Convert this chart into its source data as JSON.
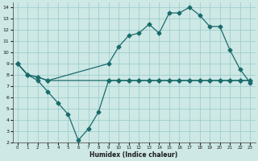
{
  "xlabel": "Humidex (Indice chaleur)",
  "bg_color": "#cde8e5",
  "grid_color": "#9ecece",
  "line_color": "#1a6b6b",
  "xlim": [
    -0.5,
    23.5
  ],
  "ylim": [
    2,
    14.4
  ],
  "xticks": [
    0,
    1,
    2,
    3,
    4,
    5,
    6,
    7,
    8,
    9,
    10,
    11,
    12,
    13,
    14,
    15,
    16,
    17,
    18,
    19,
    20,
    21,
    22,
    23
  ],
  "yticks": [
    2,
    3,
    4,
    5,
    6,
    7,
    8,
    9,
    10,
    11,
    12,
    13,
    14
  ],
  "line1_x": [
    0,
    1,
    2,
    3,
    4,
    5,
    6,
    7,
    8,
    9,
    10,
    11,
    12,
    13,
    14,
    15,
    16,
    17,
    18,
    19,
    20,
    21,
    22,
    23
  ],
  "line1_y": [
    9,
    8,
    7.5,
    6.5,
    5.5,
    4.5,
    2.2,
    3.2,
    4.7,
    7.5,
    7.5,
    7.5,
    7.5,
    7.5,
    7.5,
    7.5,
    7.5,
    7.5,
    7.5,
    7.5,
    7.5,
    7.5,
    7.5,
    7.5
  ],
  "line2_x": [
    0,
    1,
    2,
    3,
    9,
    10,
    11,
    12,
    13,
    14,
    15,
    16,
    17,
    18,
    19,
    20,
    21,
    22,
    23
  ],
  "line2_y": [
    9,
    8,
    7.8,
    7.5,
    9.0,
    10.5,
    11.5,
    11.7,
    12.5,
    11.7,
    13.5,
    13.5,
    14.0,
    13.3,
    12.3,
    12.3,
    10.2,
    8.5,
    7.3
  ],
  "line3_x": [
    0,
    1,
    2,
    3,
    9,
    10,
    11,
    12,
    13,
    14,
    15,
    16,
    17,
    18,
    19,
    20,
    21,
    22,
    23
  ],
  "line3_y": [
    9,
    8,
    7.8,
    7.5,
    7.5,
    7.5,
    7.5,
    7.5,
    7.5,
    7.5,
    7.5,
    7.5,
    7.5,
    7.5,
    7.5,
    7.5,
    7.5,
    7.5,
    7.5
  ]
}
